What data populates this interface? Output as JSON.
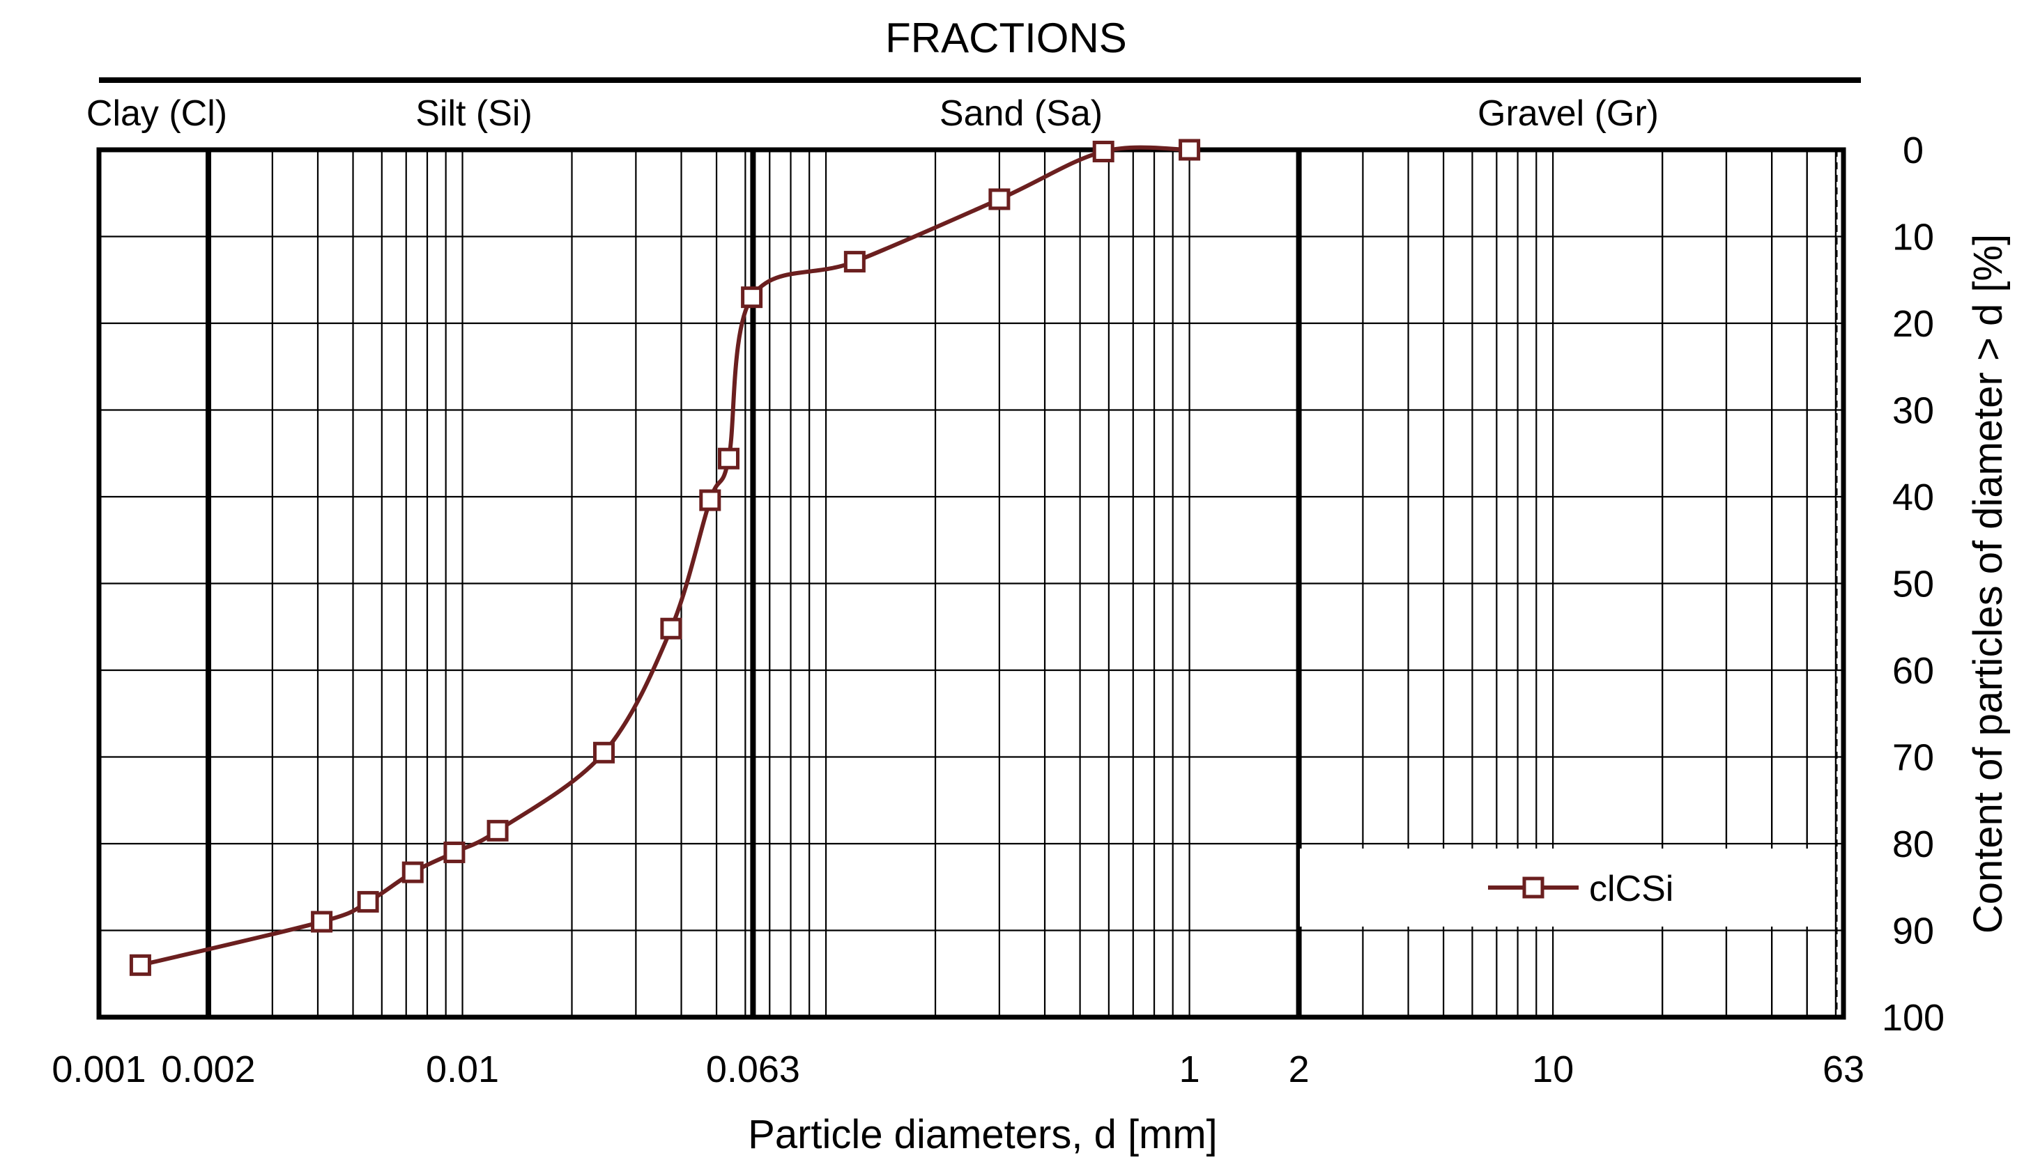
{
  "chart_data": {
    "type": "line",
    "header": "FRACTIONS",
    "fractions": [
      {
        "name": "Clay (Cl)",
        "from": 0.001,
        "to": 0.002
      },
      {
        "name": "Silt (Si)",
        "from": 0.002,
        "to": 0.063
      },
      {
        "name": "Sand (Sa)",
        "from": 0.063,
        "to": 2
      },
      {
        "name": "Gravel (Gr)",
        "from": 2,
        "to": 63
      }
    ],
    "xlabel": "Particle diameters, d [mm]",
    "ylabel": "Content of particles of diameter > d [%]",
    "x_scale": "log",
    "xlim": [
      0.001,
      63
    ],
    "ylim": [
      0,
      100
    ],
    "y_inverted": true,
    "x_ticks": [
      {
        "value": 0.001,
        "label": "0.001"
      },
      {
        "value": 0.002,
        "label": "0.002"
      },
      {
        "value": 0.01,
        "label": "0.01"
      },
      {
        "value": 0.063,
        "label": "0.063"
      },
      {
        "value": 1,
        "label": "1"
      },
      {
        "value": 2,
        "label": "2"
      },
      {
        "value": 10,
        "label": "10"
      },
      {
        "value": 63,
        "label": "63"
      }
    ],
    "y_ticks": [
      0,
      10,
      20,
      30,
      40,
      50,
      60,
      70,
      80,
      90,
      100
    ],
    "boundary_lines": [
      0.002,
      0.063,
      2
    ],
    "grid": true,
    "legend_position": "bottom-right",
    "series": [
      {
        "name": "clCSi",
        "color": "#6b1f1f",
        "marker": "square-open",
        "points": [
          {
            "x": 0.0013,
            "y": 94
          },
          {
            "x": 0.0041,
            "y": 89
          },
          {
            "x": 0.0055,
            "y": 86.7
          },
          {
            "x": 0.0073,
            "y": 83.3
          },
          {
            "x": 0.0095,
            "y": 81
          },
          {
            "x": 0.0125,
            "y": 78.5
          },
          {
            "x": 0.0245,
            "y": 69.5
          },
          {
            "x": 0.0375,
            "y": 55.2
          },
          {
            "x": 0.048,
            "y": 40.4
          },
          {
            "x": 0.054,
            "y": 35.6
          },
          {
            "x": 0.0625,
            "y": 17
          },
          {
            "x": 0.12,
            "y": 12.9
          },
          {
            "x": 0.3,
            "y": 5.7
          },
          {
            "x": 0.58,
            "y": 0.2
          },
          {
            "x": 1.0,
            "y": 0
          }
        ]
      }
    ]
  }
}
